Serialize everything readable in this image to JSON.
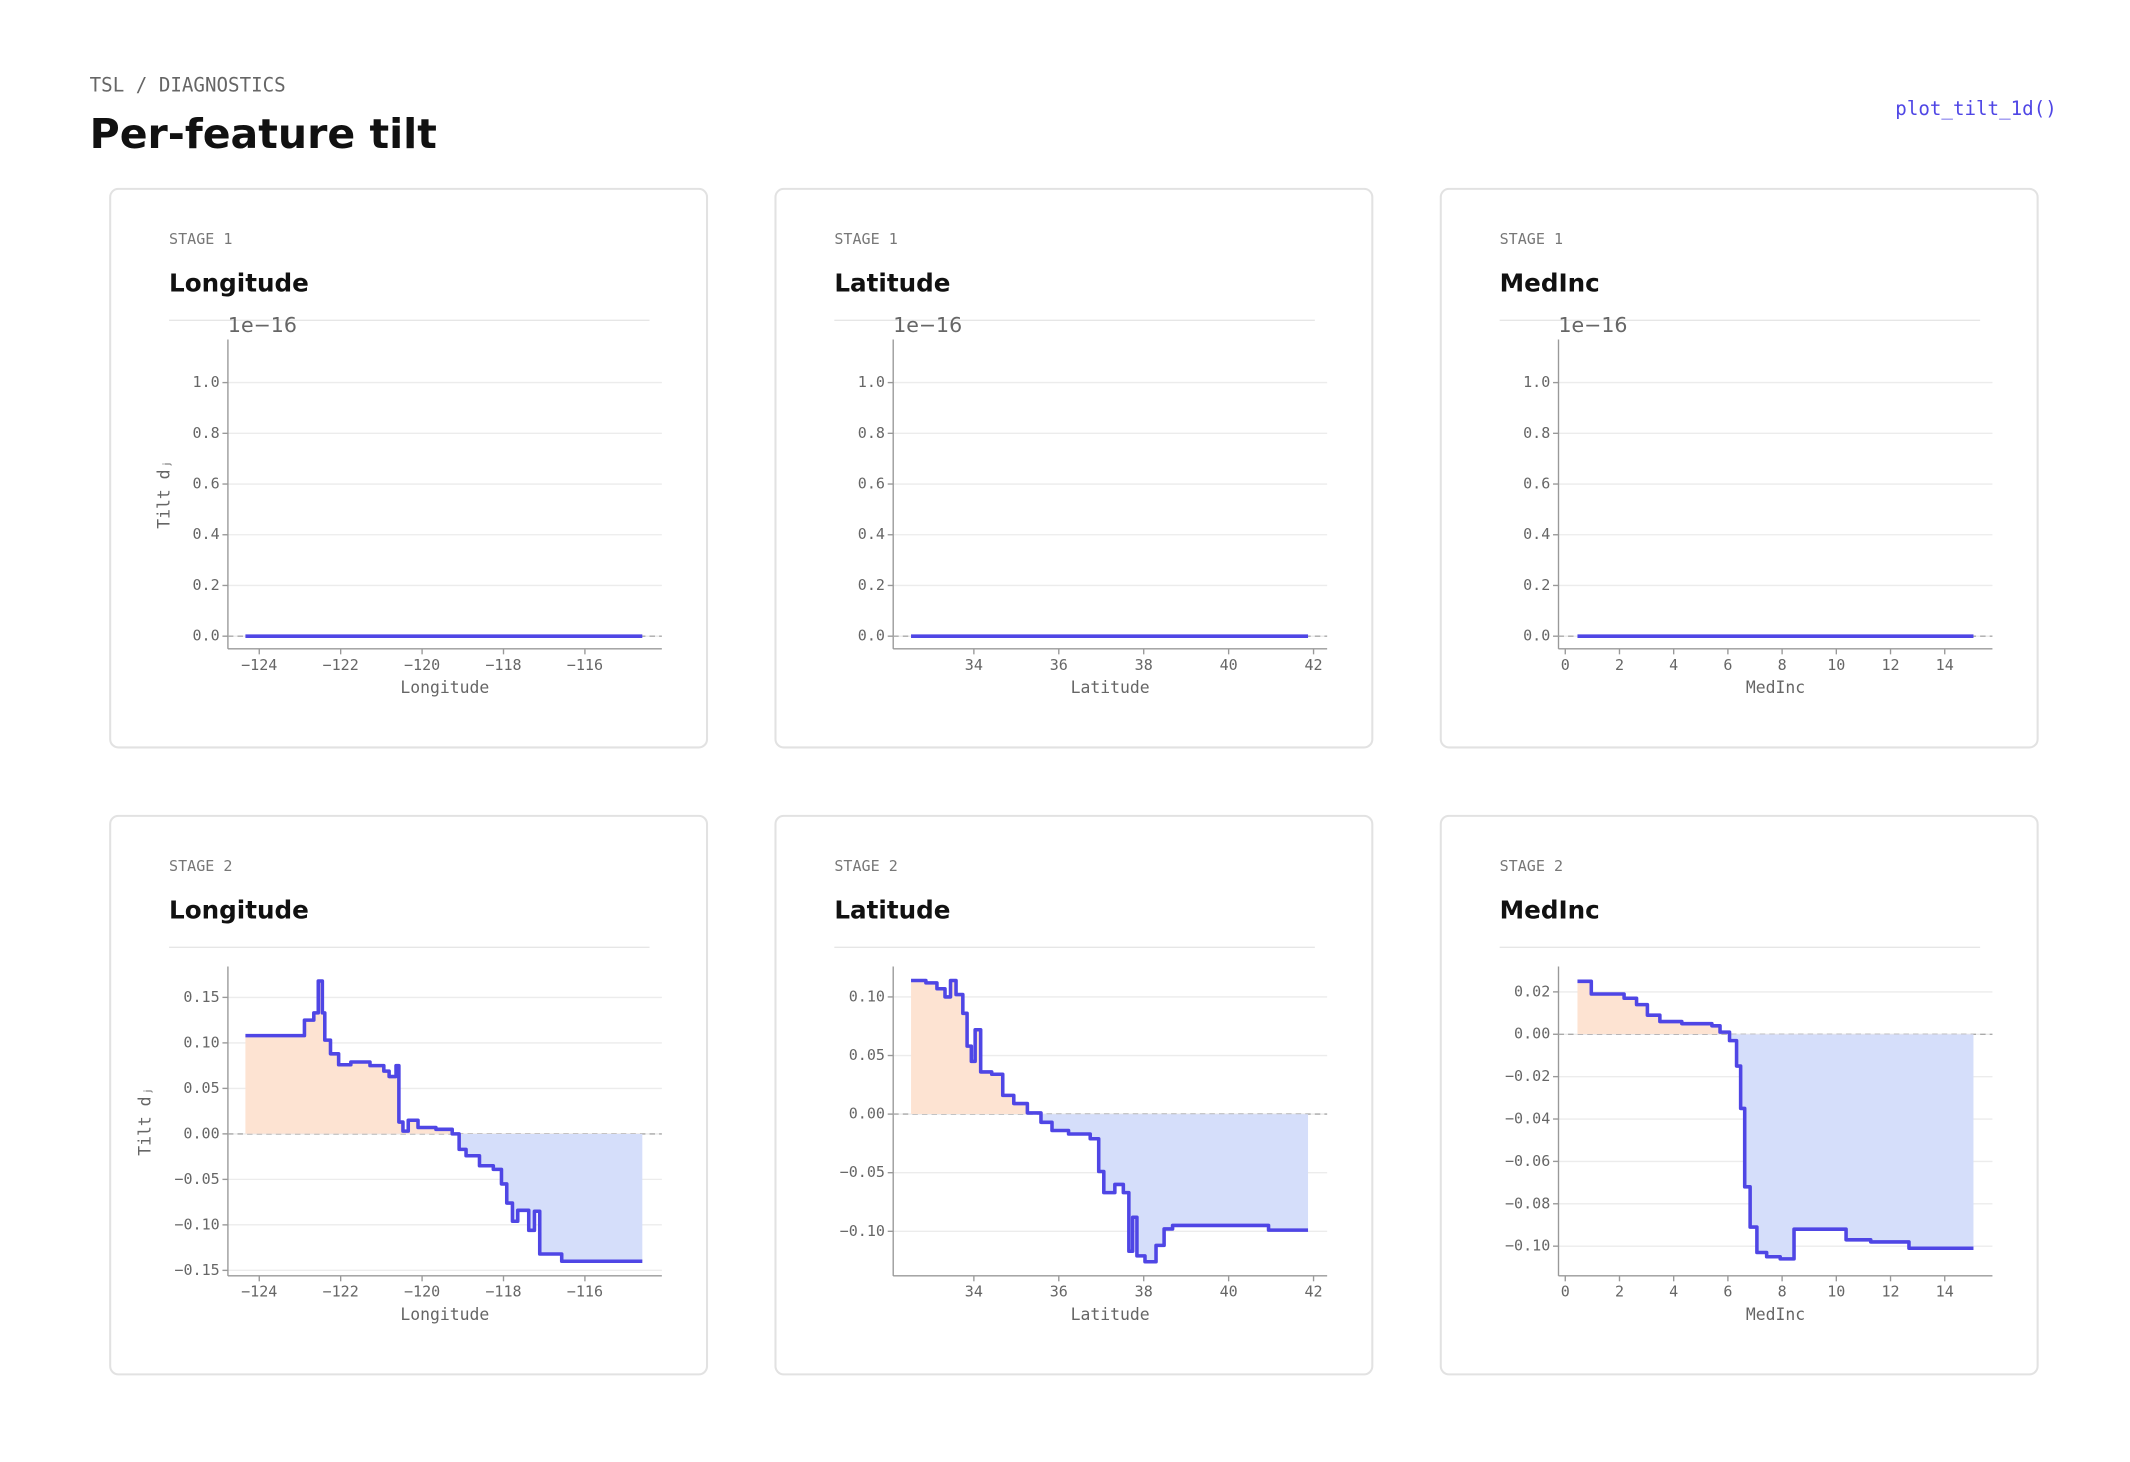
{
  "header": {
    "breadcrumb": "TSL / DIAGNOSTICS",
    "title": "Per-feature tilt",
    "function": "plot_tilt_1d()"
  },
  "chart_data": [
    {
      "type": "line",
      "step": true,
      "stage": "STAGE 1",
      "title": "Longitude",
      "xlabel": "Longitude",
      "ylabel": "Tilt dⱼ",
      "offset_text": "1e−16",
      "x": [
        -124.34,
        -114.59
      ],
      "values": [
        0,
        0
      ],
      "color": "#4f46e5",
      "positive_fill": "#fde3d2",
      "negative_fill": "#d5defa",
      "grid": true,
      "xlim": [
        -124.77,
        -114.11
      ],
      "ylim": [
        -0.05,
        1.17
      ],
      "xticks": [
        {
          "value": -124,
          "label": "−124"
        },
        {
          "value": -122,
          "label": "−122"
        },
        {
          "value": -120,
          "label": "−120"
        },
        {
          "value": -118,
          "label": "−118"
        },
        {
          "value": -116,
          "label": "−116"
        }
      ],
      "yticks": [
        {
          "value": 0,
          "label": "0.0"
        },
        0.2,
        0.4,
        0.6,
        0.8,
        {
          "value": 1,
          "label": "1.0"
        }
      ]
    },
    {
      "type": "line",
      "step": true,
      "stage": "STAGE 1",
      "title": "Latitude",
      "xlabel": "Latitude",
      "offset_text": "1e−16",
      "x": [
        32.52,
        41.87
      ],
      "values": [
        0,
        0
      ],
      "color": "#4f46e5",
      "positive_fill": "#fde3d2",
      "negative_fill": "#d5defa",
      "grid": true,
      "xlim": [
        32.1,
        42.32
      ],
      "ylim": [
        -0.05,
        1.17
      ],
      "xticks": [
        34,
        36,
        38,
        40,
        42
      ],
      "yticks": [
        {
          "value": 0,
          "label": "0.0"
        },
        0.2,
        0.4,
        0.6,
        0.8,
        {
          "value": 1,
          "label": "1.0"
        }
      ]
    },
    {
      "type": "line",
      "step": true,
      "stage": "STAGE 1",
      "title": "MedInc",
      "xlabel": "MedInc",
      "offset_text": "1e−16",
      "x": [
        0.45,
        15.06
      ],
      "values": [
        0,
        0
      ],
      "color": "#4f46e5",
      "positive_fill": "#fde3d2",
      "negative_fill": "#d5defa",
      "grid": true,
      "xlim": [
        -0.25,
        15.76
      ],
      "ylim": [
        -0.05,
        1.17
      ],
      "xticks": [
        0,
        2,
        4,
        6,
        8,
        10,
        12,
        14
      ],
      "yticks": [
        {
          "value": 0,
          "label": "0.0"
        },
        0.2,
        0.4,
        0.6,
        0.8,
        {
          "value": 1,
          "label": "1.0"
        }
      ]
    },
    {
      "type": "line",
      "step": true,
      "stage": "STAGE 2",
      "title": "Longitude",
      "xlabel": "Longitude",
      "ylabel": "Tilt dⱼ",
      "x": [
        -124.34,
        -122.89,
        -122.66,
        -122.55,
        -122.45,
        -122.39,
        -122.25,
        -122.05,
        -121.75,
        -121.28,
        -120.94,
        -120.81,
        -120.64,
        -120.57,
        -120.47,
        -120.34,
        -120.1,
        -119.66,
        -119.26,
        -119.09,
        -118.92,
        -118.59,
        -118.25,
        -118.05,
        -117.92,
        -117.78,
        -117.65,
        -117.38,
        -117.24,
        -117.11,
        -116.57,
        -114.59
      ],
      "values": [
        0.108,
        0.125,
        0.133,
        0.168,
        0.133,
        0.103,
        0.088,
        0.076,
        0.079,
        0.075,
        0.069,
        0.063,
        0.075,
        0.013,
        0.003,
        0.015,
        0.007,
        0.005,
        0,
        -0.017,
        -0.024,
        -0.035,
        -0.039,
        -0.055,
        -0.076,
        -0.096,
        -0.084,
        -0.106,
        -0.085,
        -0.132,
        -0.14,
        -0.14
      ],
      "color": "#4f46e5",
      "positive_fill": "#fde3d2",
      "negative_fill": "#d5defa",
      "grid": true,
      "xlim": [
        -124.77,
        -114.11
      ],
      "ylim": [
        -0.156,
        0.184
      ],
      "xticks": [
        {
          "value": -124,
          "label": "−124"
        },
        {
          "value": -122,
          "label": "−122"
        },
        {
          "value": -120,
          "label": "−120"
        },
        {
          "value": -118,
          "label": "−118"
        },
        {
          "value": -116,
          "label": "−116"
        }
      ],
      "yticks": [
        {
          "value": -0.15,
          "label": "−0.15"
        },
        {
          "value": -0.1,
          "label": "−0.10"
        },
        {
          "value": -0.05,
          "label": "−0.05"
        },
        {
          "value": 0,
          "label": "0.00"
        },
        0.05,
        {
          "value": 0.1,
          "label": "0.10"
        },
        0.15
      ]
    },
    {
      "type": "line",
      "step": true,
      "stage": "STAGE 2",
      "title": "Latitude",
      "xlabel": "Latitude",
      "x": [
        32.52,
        32.87,
        33.13,
        33.32,
        33.45,
        33.58,
        33.74,
        33.84,
        33.94,
        34.03,
        34.16,
        34.42,
        34.68,
        34.94,
        35.26,
        35.58,
        35.84,
        36.23,
        36.74,
        36.94,
        37.06,
        37.32,
        37.52,
        37.65,
        37.74,
        37.84,
        38.03,
        38.29,
        38.48,
        38.68,
        40.94,
        41.87
      ],
      "values": [
        0.114,
        0.112,
        0.107,
        0.1,
        0.114,
        0.102,
        0.086,
        0.058,
        0.045,
        0.072,
        0.036,
        0.034,
        0.016,
        0.009,
        0.001,
        -0.007,
        -0.014,
        -0.017,
        -0.021,
        -0.049,
        -0.067,
        -0.06,
        -0.067,
        -0.117,
        -0.088,
        -0.121,
        -0.126,
        -0.112,
        -0.098,
        -0.095,
        -0.099,
        -0.099
      ],
      "color": "#4f46e5",
      "positive_fill": "#fde3d2",
      "negative_fill": "#d5defa",
      "grid": true,
      "xlim": [
        32.1,
        42.32
      ],
      "ylim": [
        -0.138,
        0.126
      ],
      "xticks": [
        34,
        36,
        38,
        40,
        42
      ],
      "yticks": [
        {
          "value": -0.1,
          "label": "−0.10"
        },
        {
          "value": -0.05,
          "label": "−0.05"
        },
        {
          "value": 0,
          "label": "0.00"
        },
        0.05,
        {
          "value": 0.1,
          "label": "0.10"
        }
      ]
    },
    {
      "type": "line",
      "step": true,
      "stage": "STAGE 2",
      "title": "MedInc",
      "xlabel": "MedInc",
      "x": [
        0.45,
        0.96,
        2.17,
        2.63,
        3.03,
        3.49,
        4.3,
        5.41,
        5.71,
        6.06,
        6.32,
        6.47,
        6.62,
        6.82,
        7.07,
        7.43,
        7.93,
        8.44,
        10.36,
        11.27,
        12.68,
        15.06
      ],
      "values": [
        0.025,
        0.019,
        0.017,
        0.014,
        0.009,
        0.006,
        0.005,
        0.004,
        0.001,
        -0.003,
        -0.015,
        -0.035,
        -0.072,
        -0.091,
        -0.103,
        -0.105,
        -0.106,
        -0.092,
        -0.097,
        -0.098,
        -0.101,
        -0.101
      ],
      "color": "#4f46e5",
      "positive_fill": "#fde3d2",
      "negative_fill": "#d5defa",
      "grid": true,
      "xlim": [
        -0.25,
        15.76
      ],
      "ylim": [
        -0.114,
        0.032
      ],
      "xticks": [
        0,
        2,
        4,
        6,
        8,
        10,
        12,
        14
      ],
      "yticks": [
        {
          "value": -0.1,
          "label": "−0.10"
        },
        {
          "value": -0.08,
          "label": "−0.08"
        },
        {
          "value": -0.06,
          "label": "−0.06"
        },
        {
          "value": -0.04,
          "label": "−0.04"
        },
        {
          "value": -0.02,
          "label": "−0.02"
        },
        {
          "value": 0,
          "label": "0.00"
        },
        0.02
      ]
    }
  ]
}
